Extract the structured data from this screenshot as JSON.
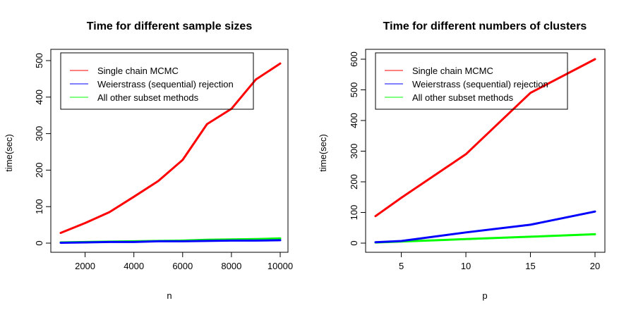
{
  "chart_data": [
    {
      "type": "line",
      "title": "Time for different sample sizes",
      "xlabel": "n",
      "ylabel": "time(sec)",
      "xlim": [
        1000,
        10000
      ],
      "ylim": [
        0,
        500
      ],
      "xticks": [
        2000,
        4000,
        6000,
        8000,
        10000
      ],
      "yticks": [
        0,
        100,
        200,
        300,
        400,
        500
      ],
      "grid": false,
      "legend": "top-left",
      "x": [
        1000,
        2000,
        3000,
        4000,
        5000,
        6000,
        7000,
        8000,
        9000,
        10000
      ],
      "series": [
        {
          "name": "Single chain MCMC",
          "color": "#ff0000",
          "values": [
            28,
            55,
            85,
            127,
            170,
            228,
            326,
            368,
            448,
            492
          ]
        },
        {
          "name": "Weierstrass (sequential) rejection",
          "color": "#0000ff",
          "values": [
            1,
            2,
            3,
            3,
            5,
            5,
            6,
            7,
            7,
            8
          ]
        },
        {
          "name": "All other subset methods",
          "color": "#00ff00",
          "values": [
            2,
            3,
            4,
            5,
            6,
            7,
            9,
            10,
            11,
            13
          ]
        }
      ]
    },
    {
      "type": "line",
      "title": "Time for different numbers of clusters",
      "xlabel": "p",
      "ylabel": "time(sec)",
      "xlim": [
        3,
        20
      ],
      "ylim": [
        0,
        600
      ],
      "xticks": [
        5,
        10,
        15,
        20
      ],
      "yticks": [
        0,
        100,
        200,
        300,
        400,
        500,
        600
      ],
      "grid": false,
      "legend": "top-left",
      "x": [
        3,
        5,
        10,
        15,
        20
      ],
      "series": [
        {
          "name": "Single chain MCMC",
          "color": "#ff0000",
          "values": [
            88,
            148,
            290,
            490,
            600
          ]
        },
        {
          "name": "Weierstrass (sequential) rejection",
          "color": "#0000ff",
          "values": [
            3,
            7,
            35,
            60,
            103
          ]
        },
        {
          "name": "All other subset methods",
          "color": "#00ff00",
          "values": [
            2,
            5,
            13,
            21,
            29
          ]
        }
      ]
    }
  ]
}
